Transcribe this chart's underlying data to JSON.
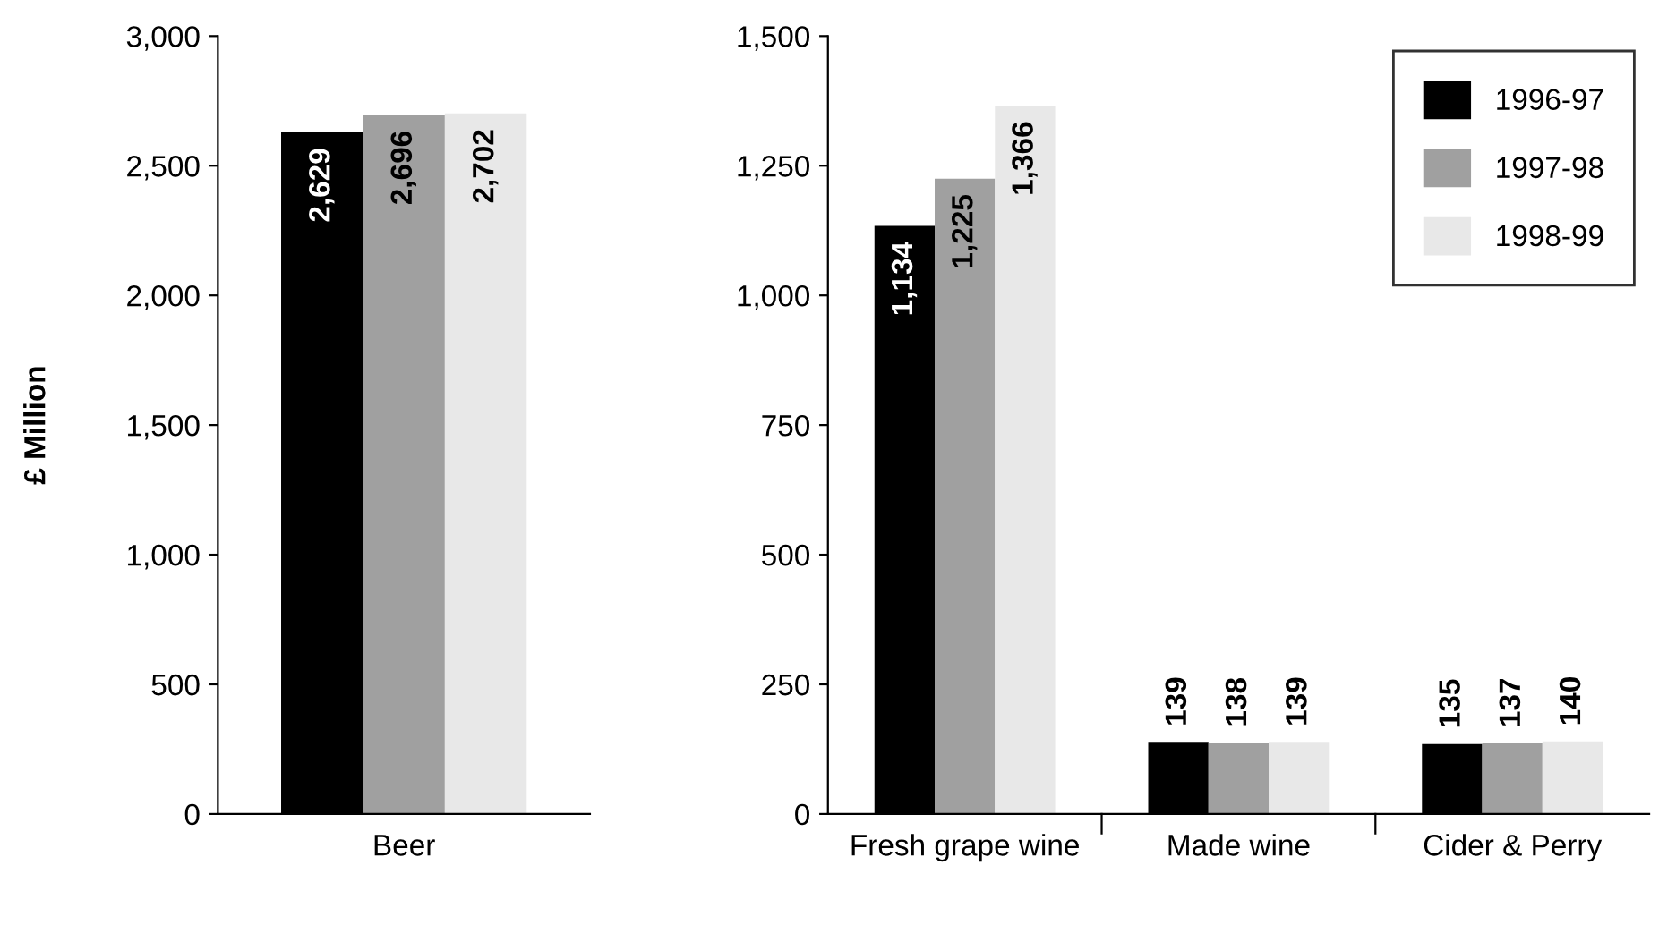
{
  "chart_data": [
    {
      "type": "bar",
      "ylabel": "£ Million",
      "categories": [
        "Beer"
      ],
      "ylim": [
        0,
        3000
      ],
      "yticks": [
        {
          "value": 0,
          "label": "0"
        },
        {
          "value": 500,
          "label": "500"
        },
        {
          "value": 1000,
          "label": "1,000"
        },
        {
          "value": 1500,
          "label": "1,500"
        },
        {
          "value": 2000,
          "label": "2,000"
        },
        {
          "value": 2500,
          "label": "2,500"
        },
        {
          "value": 3000,
          "label": "3,000"
        }
      ],
      "legend": false,
      "series": [
        {
          "color": "#000000",
          "values": [
            2629
          ],
          "value_labels": [
            "2,629"
          ]
        },
        {
          "color": "#a0a0a0",
          "values": [
            2696
          ],
          "value_labels": [
            "2,696"
          ]
        },
        {
          "color": "#e8e8e8",
          "values": [
            2702
          ],
          "value_labels": [
            "2,702"
          ]
        }
      ]
    },
    {
      "type": "bar",
      "categories": [
        "Fresh grape wine",
        "Made wine",
        "Cider & Perry"
      ],
      "ylim": [
        0,
        1500
      ],
      "yticks": [
        {
          "value": 0,
          "label": "0"
        },
        {
          "value": 250,
          "label": "250"
        },
        {
          "value": 500,
          "label": "500"
        },
        {
          "value": 750,
          "label": "750"
        },
        {
          "value": 1000,
          "label": "1,000"
        },
        {
          "value": 1250,
          "label": "1,250"
        },
        {
          "value": 1500,
          "label": "1,500"
        }
      ],
      "legend": "top right",
      "series": [
        {
          "name": "1996-97",
          "color": "#000000",
          "values": [
            1134,
            139,
            135
          ],
          "value_labels": [
            "1,134",
            "139",
            "135"
          ]
        },
        {
          "name": "1997-98",
          "color": "#a0a0a0",
          "values": [
            1225,
            138,
            137
          ],
          "value_labels": [
            "1,225",
            "138",
            "137"
          ]
        },
        {
          "name": "1998-99",
          "color": "#e8e8e8",
          "values": [
            1366,
            139,
            140
          ],
          "value_labels": [
            "1,366",
            "139",
            "140"
          ]
        }
      ]
    }
  ]
}
